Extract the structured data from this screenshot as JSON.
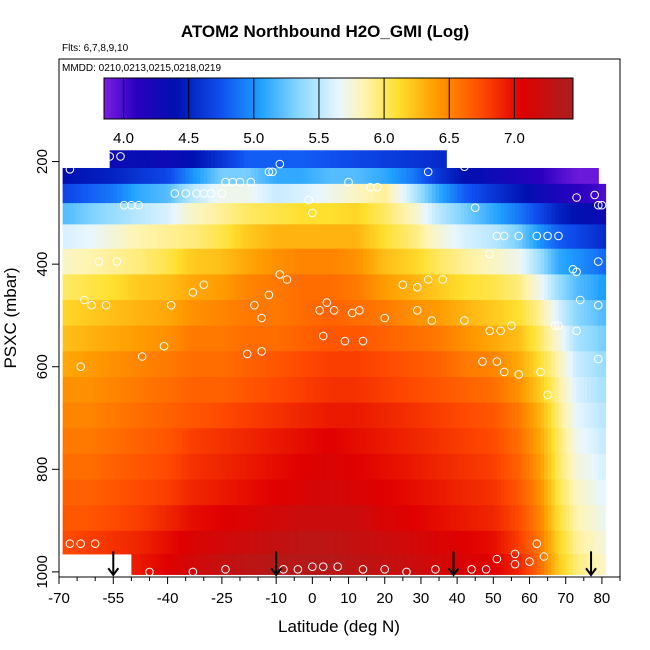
{
  "chart_data": {
    "type": "heatmap",
    "title": "ATOM2 Northbound H2O_GMI (Log)",
    "subtitle_flights": "Flts: 6,7,8,9,10",
    "subtitle_dates": "MMDD: 0210,0213,0215,0218,0219",
    "xlabel": "Latitude (deg N)",
    "ylabel": "PSXC (mbar)",
    "xlim": [
      -70,
      85
    ],
    "ylim": [
      1010,
      0
    ],
    "x_ticks": [
      "-70",
      "-55",
      "-40",
      "-25",
      "-10",
      "0",
      "10",
      "20",
      "30",
      "40",
      "50",
      "60",
      "70",
      "80"
    ],
    "y_ticks": [
      "200",
      "400",
      "600",
      "800",
      "1000"
    ],
    "colorbar": {
      "range": [
        3.85,
        7.45
      ],
      "ticks": [
        "4.0",
        "4.5",
        "5.0",
        "5.5",
        "6.0",
        "6.5",
        "7.0"
      ],
      "stops": [
        {
          "v": 3.85,
          "color": "#7a1ee0"
        },
        {
          "v": 4.1,
          "color": "#2a00c0"
        },
        {
          "v": 4.4,
          "color": "#0010b0"
        },
        {
          "v": 4.75,
          "color": "#1050f0"
        },
        {
          "v": 5.05,
          "color": "#1fa0ff"
        },
        {
          "v": 5.35,
          "color": "#8ad8ff"
        },
        {
          "v": 5.65,
          "color": "#e8f6ff"
        },
        {
          "v": 5.85,
          "color": "#fff4b0"
        },
        {
          "v": 6.1,
          "color": "#ffe030"
        },
        {
          "v": 6.4,
          "color": "#ff9c00"
        },
        {
          "v": 6.75,
          "color": "#ff4a00"
        },
        {
          "v": 7.05,
          "color": "#e00000"
        },
        {
          "v": 7.45,
          "color": "#a82020"
        }
      ]
    },
    "pressure_levels": [
      200,
      225,
      262,
      300,
      345,
      395,
      445,
      495,
      545,
      595,
      645,
      695,
      745,
      795,
      845,
      895,
      945,
      985
    ],
    "lat_nodes": [
      -68,
      -62,
      -55,
      -48,
      -40,
      -33,
      -25,
      -18,
      -10,
      -3,
      5,
      12,
      20,
      28,
      35,
      42,
      50,
      57,
      63,
      68,
      73,
      78,
      80
    ],
    "profiles": [
      {
        "lat": -68,
        "values": [
          4.45,
          4.4,
          4.7,
          5.2,
          5.6,
          5.8,
          6.0,
          6.15,
          6.25,
          6.35,
          6.45,
          6.5,
          6.55,
          6.6,
          6.65,
          6.7,
          6.75,
          6.8
        ]
      },
      {
        "lat": -62,
        "values": [
          4.35,
          4.45,
          4.8,
          5.3,
          5.65,
          5.85,
          6.05,
          6.2,
          6.3,
          6.4,
          6.45,
          6.5,
          6.55,
          6.6,
          6.65,
          6.7,
          6.8,
          6.85
        ]
      },
      {
        "lat": -55,
        "values": [
          4.3,
          4.5,
          4.9,
          5.4,
          5.75,
          5.9,
          6.1,
          6.25,
          6.35,
          6.45,
          6.5,
          6.55,
          6.6,
          6.65,
          6.7,
          6.75,
          6.85,
          6.9
        ]
      },
      {
        "lat": -48,
        "values": [
          4.35,
          4.6,
          5.1,
          5.5,
          5.85,
          5.95,
          6.2,
          6.3,
          6.4,
          6.5,
          6.55,
          6.6,
          6.65,
          6.7,
          6.75,
          6.8,
          6.9,
          6.95
        ]
      },
      {
        "lat": -40,
        "values": [
          4.3,
          4.7,
          5.2,
          5.6,
          5.9,
          6.05,
          6.25,
          6.35,
          6.45,
          6.55,
          6.6,
          6.65,
          6.7,
          6.75,
          6.8,
          6.9,
          7.0,
          7.05
        ]
      },
      {
        "lat": -33,
        "values": [
          4.4,
          5.0,
          5.5,
          5.8,
          5.95,
          6.2,
          6.35,
          6.45,
          6.55,
          6.6,
          6.65,
          6.7,
          6.8,
          6.85,
          6.9,
          7.0,
          7.1,
          7.15
        ]
      },
      {
        "lat": -25,
        "values": [
          4.6,
          5.3,
          5.7,
          5.9,
          6.05,
          6.25,
          6.4,
          6.5,
          6.55,
          6.6,
          6.65,
          6.75,
          6.85,
          6.9,
          6.95,
          7.05,
          7.15,
          7.25
        ]
      },
      {
        "lat": -18,
        "values": [
          4.8,
          5.3,
          5.7,
          6.0,
          6.2,
          6.35,
          6.5,
          6.55,
          6.6,
          6.65,
          6.7,
          6.8,
          6.9,
          6.95,
          7.0,
          7.1,
          7.2,
          7.3
        ]
      },
      {
        "lat": -10,
        "values": [
          4.8,
          5.1,
          5.55,
          6.05,
          6.3,
          6.45,
          6.55,
          6.55,
          6.6,
          6.7,
          6.75,
          6.85,
          6.95,
          7.0,
          7.05,
          7.15,
          7.25,
          7.35
        ]
      },
      {
        "lat": -3,
        "values": [
          4.8,
          5.1,
          5.6,
          6.1,
          6.3,
          6.5,
          6.6,
          6.6,
          6.65,
          6.75,
          6.8,
          6.9,
          7.0,
          7.05,
          7.1,
          7.2,
          7.3,
          7.35
        ]
      },
      {
        "lat": 5,
        "values": [
          4.75,
          5.2,
          5.7,
          6.1,
          6.3,
          6.5,
          6.6,
          6.65,
          6.7,
          6.8,
          6.85,
          6.95,
          7.05,
          7.1,
          7.15,
          7.2,
          7.3,
          7.35
        ]
      },
      {
        "lat": 12,
        "values": [
          4.7,
          5.2,
          5.8,
          6.15,
          6.3,
          6.45,
          6.55,
          6.6,
          6.7,
          6.8,
          6.85,
          6.95,
          7.0,
          7.05,
          7.1,
          7.2,
          7.25,
          7.3
        ]
      },
      {
        "lat": 20,
        "values": [
          4.65,
          5.1,
          5.9,
          6.0,
          6.1,
          6.25,
          6.4,
          6.55,
          6.65,
          6.75,
          6.8,
          6.9,
          6.95,
          7.0,
          7.05,
          7.1,
          7.2,
          7.25
        ]
      },
      {
        "lat": 28,
        "values": [
          4.6,
          4.9,
          5.5,
          5.8,
          5.95,
          6.15,
          6.3,
          6.45,
          6.6,
          6.7,
          6.75,
          6.85,
          6.9,
          6.95,
          7.0,
          7.05,
          7.15,
          7.2
        ]
      },
      {
        "lat": 35,
        "values": [
          4.55,
          4.6,
          5.1,
          5.5,
          5.75,
          6.0,
          6.2,
          6.4,
          6.55,
          6.65,
          6.7,
          6.8,
          6.85,
          6.9,
          6.95,
          7.0,
          7.1,
          7.15
        ]
      },
      {
        "lat": 42,
        "values": [
          null,
          4.4,
          4.8,
          5.3,
          5.6,
          5.9,
          6.1,
          6.3,
          6.45,
          6.55,
          6.65,
          6.75,
          6.8,
          6.85,
          6.9,
          6.95,
          7.05,
          7.1
        ]
      },
      {
        "lat": 50,
        "values": [
          null,
          4.3,
          4.6,
          5.1,
          5.5,
          5.8,
          6.05,
          6.2,
          6.35,
          6.5,
          6.6,
          6.7,
          6.75,
          6.8,
          6.85,
          6.9,
          7.0,
          7.05
        ]
      },
      {
        "lat": 57,
        "values": [
          null,
          4.2,
          4.45,
          4.9,
          5.3,
          5.7,
          5.95,
          6.1,
          6.25,
          6.35,
          6.45,
          6.55,
          6.6,
          6.65,
          6.7,
          6.75,
          6.8,
          6.9
        ]
      },
      {
        "lat": 63,
        "values": [
          null,
          4.1,
          4.3,
          4.7,
          5.0,
          5.4,
          5.7,
          5.9,
          6.0,
          6.1,
          6.2,
          6.3,
          6.35,
          6.4,
          6.45,
          6.5,
          6.55,
          6.6
        ]
      },
      {
        "lat": 68,
        "values": [
          null,
          4.0,
          4.2,
          4.5,
          4.8,
          5.1,
          5.4,
          5.6,
          5.75,
          5.85,
          5.9,
          5.95,
          6.0,
          6.0,
          6.05,
          6.1,
          6.15,
          6.2
        ]
      },
      {
        "lat": 73,
        "values": [
          null,
          3.9,
          4.1,
          4.4,
          4.7,
          5.0,
          5.2,
          5.35,
          5.45,
          5.55,
          5.6,
          5.65,
          5.7,
          5.75,
          5.8,
          5.85,
          5.9,
          5.95
        ]
      },
      {
        "lat": 78,
        "values": [
          null,
          3.9,
          4.05,
          4.35,
          4.6,
          4.9,
          5.1,
          5.25,
          5.35,
          5.45,
          5.5,
          5.55,
          5.6,
          5.65,
          5.7,
          5.75,
          5.8,
          5.85
        ]
      },
      {
        "lat": 80,
        "values": [
          null,
          null,
          4.0,
          4.3,
          4.55,
          4.85,
          5.05,
          5.2,
          5.3,
          5.4,
          5.45,
          5.5,
          5.55,
          5.6,
          5.65,
          5.7,
          5.75,
          5.8
        ]
      }
    ],
    "coverage": {
      "top_band_lat_range": [
        -56,
        37
      ],
      "top_band_pressure": 190,
      "upper_row_lat_range": [
        -69,
        73
      ],
      "lower_left_gap": {
        "lat_range": [
          -69,
          -50
        ],
        "pressure_from": 965
      }
    },
    "observation_points": [
      {
        "lat": -58,
        "p": 200
      },
      {
        "lat": -56,
        "p": 190
      },
      {
        "lat": -53,
        "p": 190
      },
      {
        "lat": -67,
        "p": 215
      },
      {
        "lat": -38,
        "p": 262
      },
      {
        "lat": -35,
        "p": 262
      },
      {
        "lat": -32,
        "p": 262
      },
      {
        "lat": -30,
        "p": 262
      },
      {
        "lat": -28,
        "p": 262
      },
      {
        "lat": -25,
        "p": 262
      },
      {
        "lat": -24,
        "p": 240
      },
      {
        "lat": -22,
        "p": 240
      },
      {
        "lat": -20,
        "p": 240
      },
      {
        "lat": -17,
        "p": 240
      },
      {
        "lat": -12,
        "p": 220
      },
      {
        "lat": -11,
        "p": 220
      },
      {
        "lat": -9,
        "p": 205
      },
      {
        "lat": 10,
        "p": 240
      },
      {
        "lat": 16,
        "p": 250
      },
      {
        "lat": 18,
        "p": 250
      },
      {
        "lat": 32,
        "p": 220
      },
      {
        "lat": 42,
        "p": 210
      },
      {
        "lat": -52,
        "p": 285
      },
      {
        "lat": -50,
        "p": 285
      },
      {
        "lat": -48,
        "p": 285
      },
      {
        "lat": -1,
        "p": 275
      },
      {
        "lat": 0,
        "p": 300
      },
      {
        "lat": 73,
        "p": 270
      },
      {
        "lat": 78,
        "p": 265
      },
      {
        "lat": 79,
        "p": 285
      },
      {
        "lat": 80,
        "p": 285
      },
      {
        "lat": 45,
        "p": 290
      },
      {
        "lat": 51,
        "p": 345
      },
      {
        "lat": 53,
        "p": 345
      },
      {
        "lat": 57,
        "p": 345
      },
      {
        "lat": 62,
        "p": 345
      },
      {
        "lat": 65,
        "p": 345
      },
      {
        "lat": 68,
        "p": 345
      },
      {
        "lat": 49,
        "p": 380
      },
      {
        "lat": -59,
        "p": 395
      },
      {
        "lat": -54,
        "p": 395
      },
      {
        "lat": 79,
        "p": 395
      },
      {
        "lat": -57,
        "p": 480
      },
      {
        "lat": -61,
        "p": 480
      },
      {
        "lat": -63,
        "p": 470
      },
      {
        "lat": -12,
        "p": 460
      },
      {
        "lat": -9,
        "p": 420
      },
      {
        "lat": -7,
        "p": 430
      },
      {
        "lat": 4,
        "p": 475
      },
      {
        "lat": 25,
        "p": 440
      },
      {
        "lat": 29,
        "p": 445
      },
      {
        "lat": 32,
        "p": 430
      },
      {
        "lat": 36,
        "p": 430
      },
      {
        "lat": 72,
        "p": 410
      },
      {
        "lat": 73,
        "p": 415
      },
      {
        "lat": 74,
        "p": 470
      },
      {
        "lat": 79,
        "p": 480
      },
      {
        "lat": -39,
        "p": 480
      },
      {
        "lat": -33,
        "p": 455
      },
      {
        "lat": -30,
        "p": 440
      },
      {
        "lat": -16,
        "p": 480
      },
      {
        "lat": -14,
        "p": 505
      },
      {
        "lat": 2,
        "p": 490
      },
      {
        "lat": 6,
        "p": 490
      },
      {
        "lat": 11,
        "p": 495
      },
      {
        "lat": 13,
        "p": 490
      },
      {
        "lat": 20,
        "p": 505
      },
      {
        "lat": 29,
        "p": 490
      },
      {
        "lat": 33,
        "p": 510
      },
      {
        "lat": 42,
        "p": 510
      },
      {
        "lat": 49,
        "p": 530
      },
      {
        "lat": 52,
        "p": 530
      },
      {
        "lat": 55,
        "p": 520
      },
      {
        "lat": 67,
        "p": 520
      },
      {
        "lat": 68,
        "p": 520
      },
      {
        "lat": 73,
        "p": 530
      },
      {
        "lat": -64,
        "p": 600
      },
      {
        "lat": -47,
        "p": 580
      },
      {
        "lat": -41,
        "p": 560
      },
      {
        "lat": 3,
        "p": 540
      },
      {
        "lat": 9,
        "p": 550
      },
      {
        "lat": 14,
        "p": 550
      },
      {
        "lat": -18,
        "p": 575
      },
      {
        "lat": -14,
        "p": 570
      },
      {
        "lat": 47,
        "p": 590
      },
      {
        "lat": 51,
        "p": 590
      },
      {
        "lat": 53,
        "p": 610
      },
      {
        "lat": 57,
        "p": 615
      },
      {
        "lat": 63,
        "p": 610
      },
      {
        "lat": 65,
        "p": 655
      },
      {
        "lat": 79,
        "p": 585
      },
      {
        "lat": -67,
        "p": 945
      },
      {
        "lat": -64,
        "p": 945
      },
      {
        "lat": -60,
        "p": 945
      },
      {
        "lat": 56,
        "p": 965
      },
      {
        "lat": 62,
        "p": 945
      },
      {
        "lat": 64,
        "p": 970
      },
      {
        "lat": 51,
        "p": 975
      },
      {
        "lat": -45,
        "p": 1000
      },
      {
        "lat": -33,
        "p": 1000
      },
      {
        "lat": -24,
        "p": 995
      },
      {
        "lat": -8,
        "p": 995
      },
      {
        "lat": -4,
        "p": 995
      },
      {
        "lat": 0,
        "p": 990
      },
      {
        "lat": 3,
        "p": 990
      },
      {
        "lat": 7,
        "p": 990
      },
      {
        "lat": 14,
        "p": 995
      },
      {
        "lat": 20,
        "p": 995
      },
      {
        "lat": 26,
        "p": 1000
      },
      {
        "lat": 34,
        "p": 995
      },
      {
        "lat": 44,
        "p": 995
      },
      {
        "lat": 48,
        "p": 995
      },
      {
        "lat": 56,
        "p": 985
      },
      {
        "lat": 60,
        "p": 980
      }
    ],
    "arrows_lat": [
      -55,
      -10,
      39,
      77
    ]
  }
}
